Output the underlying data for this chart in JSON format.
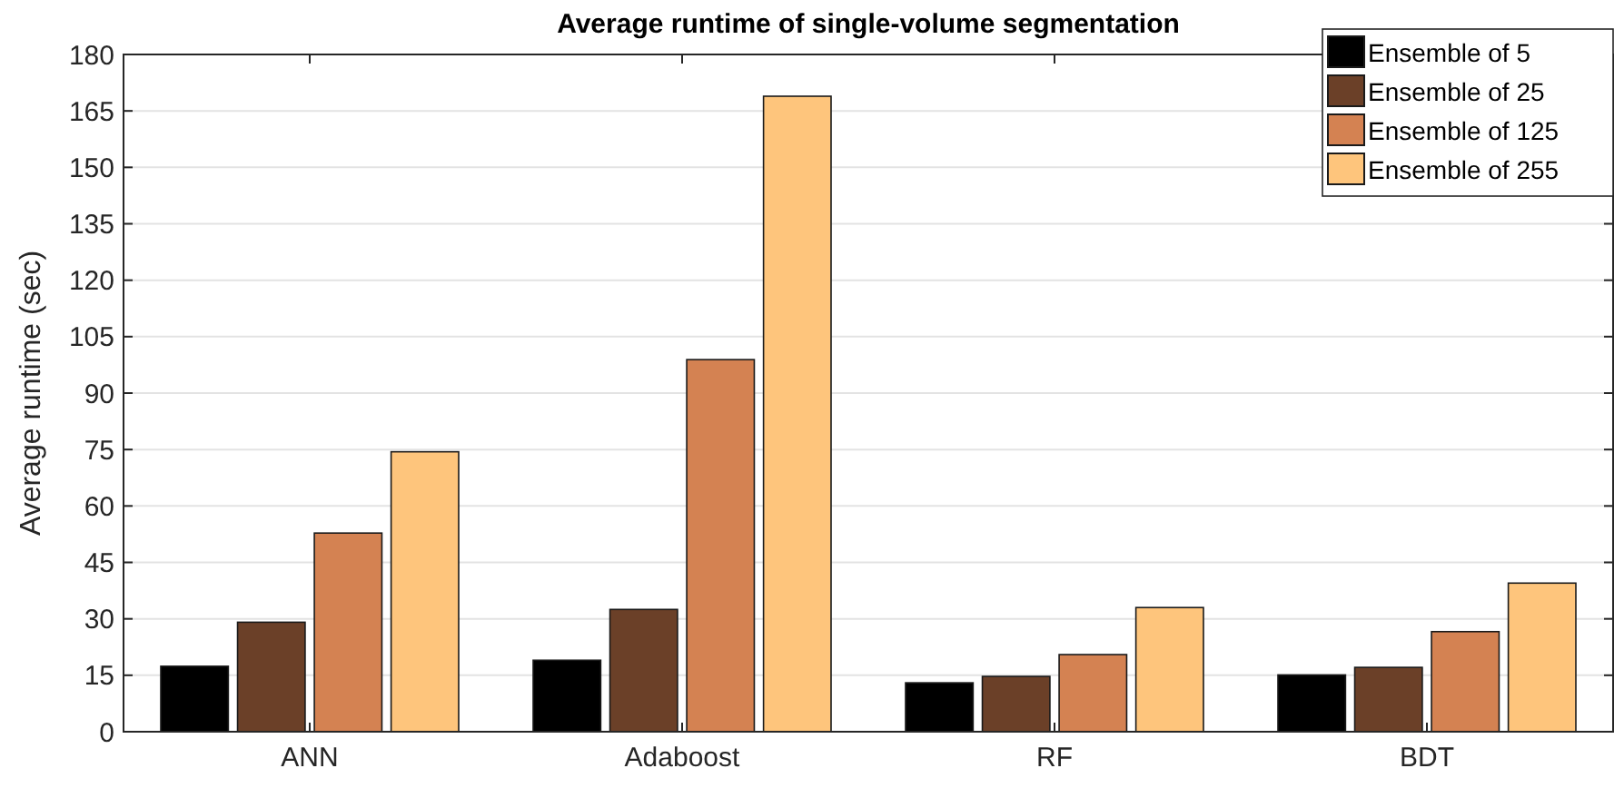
{
  "chart_data": {
    "type": "bar",
    "title": "Average runtime of single-volume segmentation",
    "ylabel": "Average runtime (sec)",
    "categories": [
      "ANN",
      "Adaboost",
      "RF",
      "BDT"
    ],
    "series": [
      {
        "name": "Ensemble of 5",
        "color": "#000000",
        "values": [
          17.4,
          19.0,
          13.0,
          15.1
        ]
      },
      {
        "name": "Ensemble of 25",
        "color": "#6b4028",
        "values": [
          29.1,
          32.5,
          14.7,
          17.1
        ]
      },
      {
        "name": "Ensemble of 125",
        "color": "#d48252",
        "values": [
          52.8,
          98.9,
          20.5,
          26.6
        ]
      },
      {
        "name": "Ensemble of 255",
        "color": "#fec57c",
        "values": [
          74.4,
          168.9,
          33.0,
          39.5
        ]
      }
    ],
    "ylim": [
      0,
      180
    ],
    "yticks": [
      0,
      15,
      30,
      45,
      60,
      75,
      90,
      105,
      120,
      135,
      150,
      165,
      180
    ],
    "grid": "y",
    "legend": "top right"
  }
}
